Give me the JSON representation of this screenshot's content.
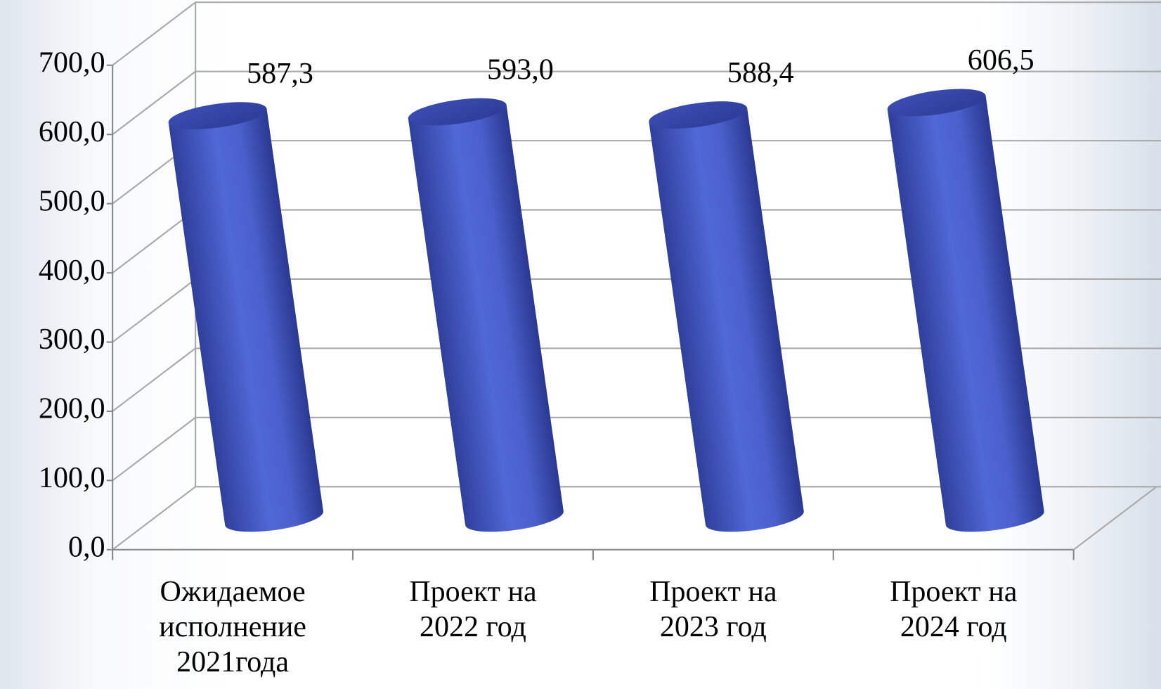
{
  "chart_data": {
    "type": "bar3d",
    "categories": [
      "Ожидаемое\nисполнение\n2021года",
      "Проект на\n2022 год",
      "Проект на\n2023 год",
      "Проект на\n2024 год"
    ],
    "values": [
      587.3,
      593.0,
      588.4,
      606.5
    ],
    "value_labels": [
      "587,3",
      "593,0",
      "588,4",
      "606,5"
    ],
    "color": "#4a5fcc",
    "ylim": [
      0,
      700
    ],
    "yticks": [
      {
        "value": 0,
        "label": "0,0"
      },
      {
        "value": 100,
        "label": "100,0"
      },
      {
        "value": 200,
        "label": "200,0"
      },
      {
        "value": 300,
        "label": "300,0"
      },
      {
        "value": 400,
        "label": "400,0"
      },
      {
        "value": 500,
        "label": "500,0"
      },
      {
        "value": 600,
        "label": "600,0"
      },
      {
        "value": 700,
        "label": "700,0"
      }
    ],
    "grid": true
  }
}
